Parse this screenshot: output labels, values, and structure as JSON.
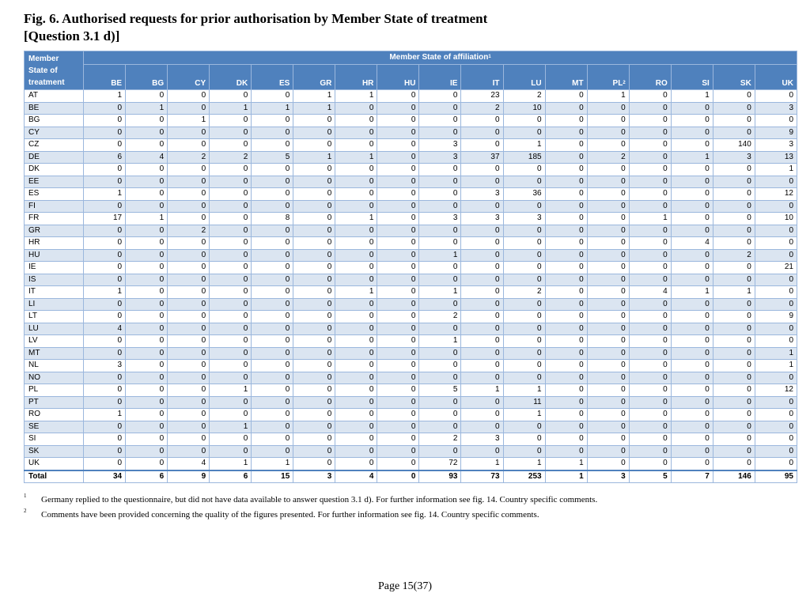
{
  "title_line1": "Fig. 6. Authorised requests for prior authorisation by Member State of treatment",
  "title_line2": "[Question 3.1 d)]",
  "header": {
    "row_label_header": [
      "Member",
      "State of",
      "treatment"
    ],
    "group_label": "Member State of affiliation",
    "group_sup": "1"
  },
  "columns": [
    {
      "code": "BE",
      "sup": ""
    },
    {
      "code": "BG",
      "sup": ""
    },
    {
      "code": "CY",
      "sup": ""
    },
    {
      "code": "DK",
      "sup": ""
    },
    {
      "code": "ES",
      "sup": ""
    },
    {
      "code": "GR",
      "sup": ""
    },
    {
      "code": "HR",
      "sup": ""
    },
    {
      "code": "HU",
      "sup": ""
    },
    {
      "code": "IE",
      "sup": ""
    },
    {
      "code": "IT",
      "sup": ""
    },
    {
      "code": "LU",
      "sup": ""
    },
    {
      "code": "MT",
      "sup": ""
    },
    {
      "code": "PL",
      "sup": "2"
    },
    {
      "code": "RO",
      "sup": ""
    },
    {
      "code": "SI",
      "sup": ""
    },
    {
      "code": "SK",
      "sup": ""
    },
    {
      "code": "UK",
      "sup": ""
    }
  ],
  "rows": [
    {
      "state": "AT",
      "values": [
        1,
        0,
        0,
        0,
        0,
        1,
        1,
        0,
        0,
        23,
        2,
        0,
        1,
        0,
        1,
        0,
        0
      ]
    },
    {
      "state": "BE",
      "values": [
        0,
        1,
        0,
        1,
        1,
        1,
        0,
        0,
        0,
        2,
        10,
        0,
        0,
        0,
        0,
        0,
        3
      ]
    },
    {
      "state": "BG",
      "values": [
        0,
        0,
        1,
        0,
        0,
        0,
        0,
        0,
        0,
        0,
        0,
        0,
        0,
        0,
        0,
        0,
        0
      ]
    },
    {
      "state": "CY",
      "values": [
        0,
        0,
        0,
        0,
        0,
        0,
        0,
        0,
        0,
        0,
        0,
        0,
        0,
        0,
        0,
        0,
        9
      ]
    },
    {
      "state": "CZ",
      "values": [
        0,
        0,
        0,
        0,
        0,
        0,
        0,
        0,
        3,
        0,
        1,
        0,
        0,
        0,
        0,
        140,
        3
      ]
    },
    {
      "state": "DE",
      "values": [
        6,
        4,
        2,
        2,
        5,
        1,
        1,
        0,
        3,
        37,
        185,
        0,
        2,
        0,
        1,
        3,
        13
      ]
    },
    {
      "state": "DK",
      "values": [
        0,
        0,
        0,
        0,
        0,
        0,
        0,
        0,
        0,
        0,
        0,
        0,
        0,
        0,
        0,
        0,
        1
      ]
    },
    {
      "state": "EE",
      "values": [
        0,
        0,
        0,
        0,
        0,
        0,
        0,
        0,
        0,
        0,
        0,
        0,
        0,
        0,
        0,
        0,
        0
      ]
    },
    {
      "state": "ES",
      "values": [
        1,
        0,
        0,
        0,
        0,
        0,
        0,
        0,
        0,
        3,
        36,
        0,
        0,
        0,
        0,
        0,
        12
      ]
    },
    {
      "state": "FI",
      "values": [
        0,
        0,
        0,
        0,
        0,
        0,
        0,
        0,
        0,
        0,
        0,
        0,
        0,
        0,
        0,
        0,
        0
      ]
    },
    {
      "state": "FR",
      "values": [
        17,
        1,
        0,
        0,
        8,
        0,
        1,
        0,
        3,
        3,
        3,
        0,
        0,
        1,
        0,
        0,
        10
      ]
    },
    {
      "state": "GR",
      "values": [
        0,
        0,
        2,
        0,
        0,
        0,
        0,
        0,
        0,
        0,
        0,
        0,
        0,
        0,
        0,
        0,
        0
      ]
    },
    {
      "state": "HR",
      "values": [
        0,
        0,
        0,
        0,
        0,
        0,
        0,
        0,
        0,
        0,
        0,
        0,
        0,
        0,
        4,
        0,
        0
      ]
    },
    {
      "state": "HU",
      "values": [
        0,
        0,
        0,
        0,
        0,
        0,
        0,
        0,
        1,
        0,
        0,
        0,
        0,
        0,
        0,
        2,
        0
      ]
    },
    {
      "state": "IE",
      "values": [
        0,
        0,
        0,
        0,
        0,
        0,
        0,
        0,
        0,
        0,
        0,
        0,
        0,
        0,
        0,
        0,
        21
      ]
    },
    {
      "state": "IS",
      "values": [
        0,
        0,
        0,
        0,
        0,
        0,
        0,
        0,
        0,
        0,
        0,
        0,
        0,
        0,
        0,
        0,
        0
      ]
    },
    {
      "state": "IT",
      "values": [
        1,
        0,
        0,
        0,
        0,
        0,
        1,
        0,
        1,
        0,
        2,
        0,
        0,
        4,
        1,
        1,
        0
      ]
    },
    {
      "state": "LI",
      "values": [
        0,
        0,
        0,
        0,
        0,
        0,
        0,
        0,
        0,
        0,
        0,
        0,
        0,
        0,
        0,
        0,
        0
      ]
    },
    {
      "state": "LT",
      "values": [
        0,
        0,
        0,
        0,
        0,
        0,
        0,
        0,
        2,
        0,
        0,
        0,
        0,
        0,
        0,
        0,
        9
      ]
    },
    {
      "state": "LU",
      "values": [
        4,
        0,
        0,
        0,
        0,
        0,
        0,
        0,
        0,
        0,
        0,
        0,
        0,
        0,
        0,
        0,
        0
      ]
    },
    {
      "state": "LV",
      "values": [
        0,
        0,
        0,
        0,
        0,
        0,
        0,
        0,
        1,
        0,
        0,
        0,
        0,
        0,
        0,
        0,
        0
      ]
    },
    {
      "state": "MT",
      "values": [
        0,
        0,
        0,
        0,
        0,
        0,
        0,
        0,
        0,
        0,
        0,
        0,
        0,
        0,
        0,
        0,
        1
      ]
    },
    {
      "state": "NL",
      "values": [
        3,
        0,
        0,
        0,
        0,
        0,
        0,
        0,
        0,
        0,
        0,
        0,
        0,
        0,
        0,
        0,
        1
      ]
    },
    {
      "state": "NO",
      "values": [
        0,
        0,
        0,
        0,
        0,
        0,
        0,
        0,
        0,
        0,
        0,
        0,
        0,
        0,
        0,
        0,
        0
      ]
    },
    {
      "state": "PL",
      "values": [
        0,
        0,
        0,
        1,
        0,
        0,
        0,
        0,
        5,
        1,
        1,
        0,
        0,
        0,
        0,
        0,
        12
      ]
    },
    {
      "state": "PT",
      "values": [
        0,
        0,
        0,
        0,
        0,
        0,
        0,
        0,
        0,
        0,
        11,
        0,
        0,
        0,
        0,
        0,
        0
      ]
    },
    {
      "state": "RO",
      "values": [
        1,
        0,
        0,
        0,
        0,
        0,
        0,
        0,
        0,
        0,
        1,
        0,
        0,
        0,
        0,
        0,
        0
      ]
    },
    {
      "state": "SE",
      "values": [
        0,
        0,
        0,
        1,
        0,
        0,
        0,
        0,
        0,
        0,
        0,
        0,
        0,
        0,
        0,
        0,
        0
      ]
    },
    {
      "state": "SI",
      "values": [
        0,
        0,
        0,
        0,
        0,
        0,
        0,
        0,
        2,
        3,
        0,
        0,
        0,
        0,
        0,
        0,
        0
      ]
    },
    {
      "state": "SK",
      "values": [
        0,
        0,
        0,
        0,
        0,
        0,
        0,
        0,
        0,
        0,
        0,
        0,
        0,
        0,
        0,
        0,
        0
      ]
    },
    {
      "state": "UK",
      "values": [
        0,
        0,
        4,
        1,
        1,
        0,
        0,
        0,
        72,
        1,
        1,
        1,
        0,
        0,
        0,
        0,
        0
      ]
    }
  ],
  "total": {
    "label": "Total",
    "values": [
      34,
      6,
      9,
      6,
      15,
      3,
      4,
      0,
      93,
      73,
      253,
      1,
      3,
      5,
      7,
      146,
      95
    ]
  },
  "footnotes": [
    {
      "mark": "1",
      "text": "Germany replied to the questionnaire, but did not have data available to answer question 3.1 d). For further information see fig. 14. Country specific comments."
    },
    {
      "mark": "2",
      "text": "Comments have been provided concerning the quality of the figures presented. For further information see fig. 14. Country specific comments."
    }
  ],
  "page_label": "Page 15(37)"
}
